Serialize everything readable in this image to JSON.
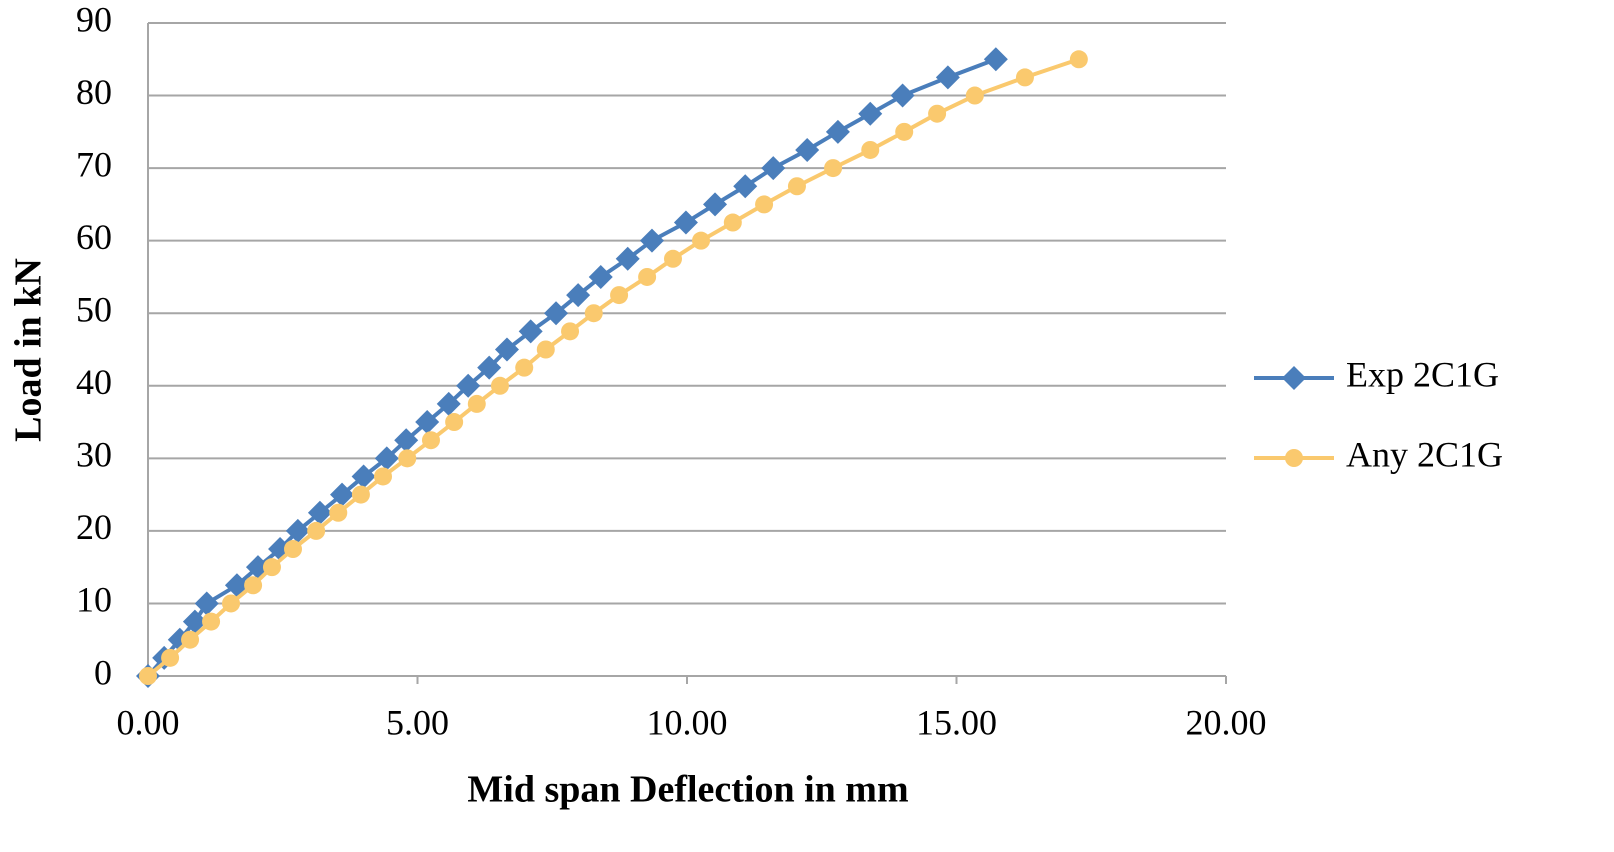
{
  "chart_data": {
    "type": "line",
    "xlabel": "Mid span Deflection in mm",
    "ylabel": "Load in kN",
    "xlim": [
      0,
      20
    ],
    "ylim": [
      0,
      90
    ],
    "xticks": [
      {
        "value": 0,
        "label": "0.00"
      },
      {
        "value": 5,
        "label": "5.00"
      },
      {
        "value": 10,
        "label": "10.00"
      },
      {
        "value": 15,
        "label": "15.00"
      },
      {
        "value": 20,
        "label": "20.00"
      }
    ],
    "yticks": [
      0,
      10,
      20,
      30,
      40,
      50,
      60,
      70,
      80,
      90
    ],
    "grid": true,
    "legend": "right",
    "series": [
      {
        "name": "Exp 2C1G",
        "color": "#4a7ebb",
        "marker": "diamond",
        "x": [
          0,
          0.3,
          0.59,
          0.87,
          1.09,
          1.65,
          2.04,
          2.45,
          2.78,
          3.19,
          3.6,
          4.0,
          4.43,
          4.79,
          5.18,
          5.58,
          5.94,
          6.33,
          6.66,
          7.1,
          7.57,
          7.98,
          8.4,
          8.9,
          9.35,
          9.98,
          10.52,
          11.08,
          11.6,
          12.23,
          12.8,
          13.4,
          14.0,
          14.84,
          15.73
        ],
        "values": [
          0,
          2.5,
          5,
          7.5,
          10,
          12.5,
          15,
          17.5,
          20,
          22.5,
          25,
          27.5,
          30,
          32.5,
          35,
          37.5,
          40,
          42.5,
          45,
          47.5,
          50,
          52.5,
          55,
          57.5,
          60,
          62.5,
          65,
          67.5,
          70,
          72.5,
          75,
          77.5,
          80,
          82.5,
          85
        ]
      },
      {
        "name": "Any 2C1G",
        "color": "#fac96e",
        "marker": "circle",
        "x": [
          0,
          0.41,
          0.78,
          1.17,
          1.54,
          1.95,
          2.3,
          2.69,
          3.12,
          3.53,
          3.95,
          4.36,
          4.81,
          5.25,
          5.68,
          6.1,
          6.53,
          6.98,
          7.38,
          7.83,
          8.27,
          8.74,
          9.26,
          9.74,
          10.26,
          10.85,
          11.43,
          12.04,
          12.71,
          13.4,
          14.03,
          14.64,
          15.34,
          16.27,
          17.27
        ],
        "values": [
          0,
          2.5,
          5,
          7.5,
          10,
          12.5,
          15,
          17.5,
          20,
          22.5,
          25,
          27.5,
          30,
          32.5,
          35,
          37.5,
          40,
          42.5,
          45,
          47.5,
          50,
          52.5,
          55,
          57.5,
          60,
          62.5,
          65,
          67.5,
          70,
          72.5,
          75,
          77.5,
          80,
          82.5,
          85
        ]
      }
    ]
  }
}
